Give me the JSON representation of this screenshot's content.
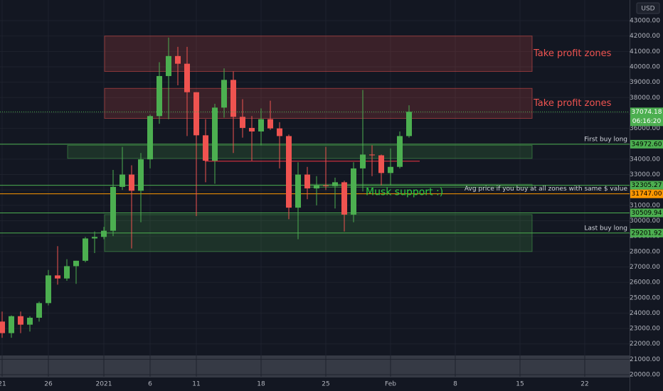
{
  "chart_data": {
    "type": "candlestick",
    "currency": "USD",
    "up_color": "#4caf50",
    "down_color": "#ef5350",
    "grid": true,
    "categories": [
      "21",
      null,
      null,
      null,
      null,
      "26",
      null,
      null,
      null,
      null,
      null,
      "2021",
      null,
      null,
      null,
      null,
      "6",
      null,
      null,
      null,
      null,
      "11",
      null,
      null,
      null,
      null,
      null,
      null,
      "18",
      null,
      null,
      null,
      null,
      null,
      null,
      "25",
      null,
      null,
      null,
      null,
      null,
      null,
      "Feb",
      null,
      null,
      null,
      null,
      null,
      null,
      "8",
      null,
      null,
      null,
      null,
      null,
      null,
      "15",
      null,
      null,
      null,
      null,
      null,
      null,
      "22"
    ],
    "open": [
      23450,
      22700,
      23800,
      23250,
      23700,
      24650,
      26450,
      26250,
      27050,
      27400,
      28850,
      28950,
      29350,
      32200,
      33000,
      31950,
      33990,
      36800,
      39400,
      40700,
      40200,
      38350,
      35550,
      33900,
      37350,
      39150,
      36750,
      36030,
      35800,
      36600,
      36000,
      35500,
      30850,
      33000,
      32100,
      32300,
      32250,
      32500,
      30400,
      33400,
      34300,
      34250,
      33100,
      33500,
      35500,
      null,
      null,
      null,
      null,
      null,
      null,
      null,
      null,
      null,
      null,
      null,
      null,
      null,
      null,
      null,
      null,
      null,
      null,
      null
    ],
    "high": [
      24100,
      23850,
      24100,
      23800,
      24750,
      26800,
      28350,
      27500,
      27400,
      28950,
      29300,
      29600,
      33300,
      34800,
      33600,
      34400,
      36900,
      40300,
      41900,
      41300,
      41300,
      38350,
      36600,
      37600,
      39900,
      39700,
      37900,
      36800,
      37300,
      37800,
      36400,
      35600,
      33800,
      33500,
      32900,
      34800,
      32800,
      32600,
      33800,
      38500,
      34900,
      34300,
      34700,
      35800,
      37500,
      null,
      null,
      null,
      null,
      null,
      null,
      null,
      null,
      null,
      null,
      null,
      null,
      null,
      null,
      null,
      null,
      null,
      null,
      null
    ],
    "low": [
      22400,
      22400,
      22700,
      22800,
      23450,
      24500,
      25850,
      26100,
      25900,
      27300,
      27900,
      28800,
      29000,
      32000,
      28200,
      29900,
      33400,
      36300,
      36600,
      38800,
      35500,
      30300,
      32500,
      32400,
      36700,
      34400,
      35400,
      33900,
      34900,
      35900,
      33400,
      30100,
      28800,
      31400,
      31000,
      32000,
      30800,
      29300,
      29900,
      31900,
      32900,
      32300,
      32300,
      33400,
      35400,
      null,
      null,
      null,
      null,
      null,
      null,
      null,
      null,
      null,
      null,
      null,
      null,
      null,
      null,
      null,
      null,
      null,
      null,
      null
    ],
    "close": [
      22700,
      23800,
      23250,
      23700,
      24650,
      26450,
      26250,
      27050,
      27400,
      28850,
      28950,
      29350,
      32200,
      33000,
      31950,
      33990,
      36800,
      39400,
      40700,
      40200,
      38350,
      35550,
      33900,
      37350,
      39150,
      36750,
      36030,
      35800,
      36600,
      36000,
      35500,
      30850,
      33000,
      32100,
      32300,
      32250,
      32500,
      30400,
      33400,
      34300,
      34250,
      33100,
      33500,
      35500,
      37074.18,
      null,
      null,
      null,
      null,
      null,
      null,
      null,
      null,
      null,
      null,
      null,
      null,
      null,
      null,
      null,
      null,
      null,
      null,
      null
    ],
    "ylim": [
      18940,
      44340
    ],
    "yticks": [
      {
        "value": 43000,
        "label": "43000.00"
      },
      {
        "value": 42000,
        "label": "42000.00"
      },
      {
        "value": 41000,
        "label": "41000.00"
      },
      {
        "value": 40000,
        "label": "40000.00"
      },
      {
        "value": 39000,
        "label": "39000.00"
      },
      {
        "value": 38000,
        "label": "38000.00"
      },
      {
        "value": 37000,
        "label": "37000.00"
      },
      {
        "value": 36000,
        "label": "36000.00"
      },
      {
        "value": 35000,
        "label": "35000.00"
      },
      {
        "value": 34000,
        "label": "34000.00"
      },
      {
        "value": 33000,
        "label": "33000.00"
      },
      {
        "value": 32000,
        "label": "32000.00"
      },
      {
        "value": 31000,
        "label": "31000.00"
      },
      {
        "value": 30000,
        "label": "30000.00"
      },
      {
        "value": 29000,
        "label": "29000.00"
      },
      {
        "value": 28000,
        "label": "28000.00"
      },
      {
        "value": 27000,
        "label": "27000.00"
      },
      {
        "value": 26000,
        "label": "26000.00"
      },
      {
        "value": 25000,
        "label": "25000.00"
      },
      {
        "value": 24000,
        "label": "24000.00"
      },
      {
        "value": 23000,
        "label": "23000.00"
      },
      {
        "value": 22000,
        "label": "22000.00"
      },
      {
        "value": 21000,
        "label": "21000.00"
      },
      {
        "value": 20000,
        "label": "20000.00"
      }
    ],
    "last_price": 37074.18,
    "countdown": "06:16:20",
    "zones": [
      {
        "low": 39700,
        "high": 42000,
        "color": "#ef5350",
        "text": "Take profit zones"
      },
      {
        "low": 36650,
        "high": 38600,
        "color": "#ef5350",
        "text": "Take profit zones"
      },
      {
        "low": 34050,
        "high": 34900,
        "color": "#4caf50"
      },
      {
        "low": 32170,
        "high": 32370,
        "color": "#4caf50"
      },
      {
        "low": 28000,
        "high": 30400,
        "color": "#4caf50"
      }
    ],
    "levels": [
      {
        "value": 34972.6,
        "label": "34972.60",
        "color": "#4caf50",
        "text": "First buy long"
      },
      {
        "value": 33870,
        "color": "#f23645"
      },
      {
        "value": 32305.27,
        "label": "32305.27",
        "color": "#4caf50"
      },
      {
        "value": 31747,
        "label": "31747.00",
        "color": "#ff9800",
        "text": "Avg price if you buy at all zones with same $ value"
      },
      {
        "value": 30509.94,
        "label": "30509.94",
        "color": "#4caf50"
      },
      {
        "value": 29201.92,
        "label": "29201.92",
        "color": "#4caf50",
        "text": "Last buy long"
      }
    ],
    "annotation": {
      "text": "Musk support :)",
      "value": 31850,
      "color": "#2ecc40"
    }
  }
}
